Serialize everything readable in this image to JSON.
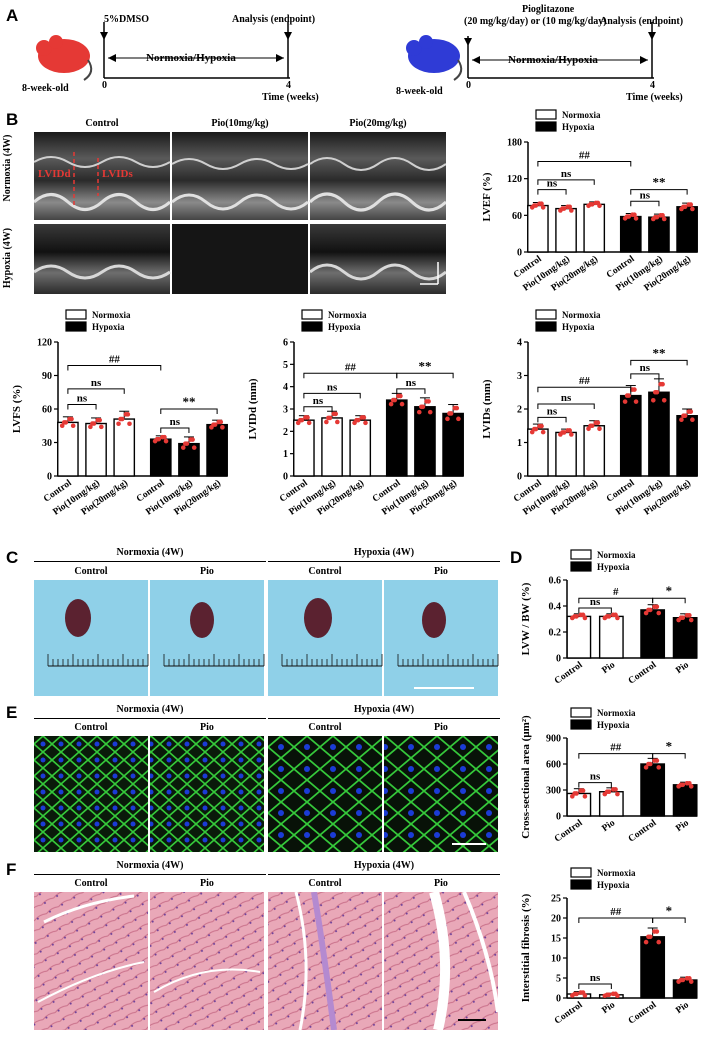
{
  "panels": {
    "A": "A",
    "B": "B",
    "C": "C",
    "D": "D",
    "E": "E",
    "F": "F"
  },
  "panel_a": {
    "left": {
      "drug": "5%DMSO",
      "analysis": "Analysis (endpoint)",
      "condition": "Normoxia/Hypoxia",
      "age": "8-week-old",
      "start": "0",
      "end": "4",
      "time": "Time (weeks)",
      "mouse_color": "#e53935"
    },
    "right": {
      "drug_line1": "Pioglitazone",
      "drug_line2": "(20 mg/kg/day) or (10 mg/kg/day)",
      "analysis": "Analysis (endpoint)",
      "condition": "Normoxia/Hypoxia",
      "age": "8-week-old",
      "start": "0",
      "end": "4",
      "time": "Time (weeks)",
      "mouse_color": "#2f3bd6"
    }
  },
  "echo": {
    "col_headers": [
      "Control",
      "Pio(10mg/kg)",
      "Pio(20mg/kg)"
    ],
    "row_headers": [
      "Normoxia (4W)",
      "Hypoxia (4W)"
    ],
    "lvidd": "LVIDd",
    "lvids": "LVIDs"
  },
  "heart": {
    "group_headers": [
      "Normoxia (4W)",
      "Hypoxia (4W)"
    ],
    "col_headers": [
      "Control",
      "Pio",
      "Control",
      "Pio"
    ]
  },
  "wga": {
    "group_headers": [
      "Normoxia (4W)",
      "Hypoxia (4W)"
    ],
    "col_headers": [
      "Control",
      "Pio",
      "Control",
      "Pio"
    ]
  },
  "he": {
    "group_headers": [
      "Normoxia (4W)",
      "Hypoxia (4W)"
    ],
    "col_headers": [
      "Control",
      "Pio",
      "Control",
      "Pio"
    ]
  },
  "colors": {
    "normoxia_fill": "#ffffff",
    "hypoxia_fill": "#000000",
    "dot": "#e53935",
    "wga_green": "#35c83a",
    "wga_blue": "#1b3bd6",
    "he_pink": "#e9a8b8",
    "echo_gray": "#3a3a3a",
    "pad_blue": "#8fd0e8"
  },
  "chart_data": [
    {
      "id": "lvef",
      "type": "bar",
      "ylabel": "LVEF (%)",
      "ylim": [
        0,
        180
      ],
      "yticks": [
        0,
        60,
        120,
        180
      ],
      "categories": [
        "Control",
        "Pio(10mg/kg)",
        "Pio(20mg/kg)",
        "Control",
        "Pio(10mg/kg)",
        "Pio(20mg/kg)"
      ],
      "groups": [
        "Normoxia",
        "Normoxia",
        "Normoxia",
        "Hypoxia",
        "Hypoxia",
        "Hypoxia"
      ],
      "values": [
        76,
        71,
        78,
        58,
        57,
        74
      ],
      "errors": [
        5,
        5,
        4,
        5,
        5,
        6
      ],
      "legend": [
        "Normoxia",
        "Hypoxia"
      ],
      "annotations": [
        {
          "pair": [
            0,
            1
          ],
          "text": "ns",
          "y": 102
        },
        {
          "pair": [
            0,
            2
          ],
          "text": "ns",
          "y": 118
        },
        {
          "pair": [
            0,
            3
          ],
          "text": "##",
          "y": 148
        },
        {
          "pair": [
            3,
            4
          ],
          "text": "ns",
          "y": 83
        },
        {
          "pair": [
            3,
            5
          ],
          "text": "**",
          "y": 102
        }
      ]
    },
    {
      "id": "lvfs",
      "type": "bar",
      "ylabel": "LVFS (%)",
      "ylim": [
        0,
        120
      ],
      "yticks": [
        0,
        30,
        60,
        90,
        120
      ],
      "categories": [
        "Control",
        "Pio(10mg/kg)",
        "Pio(20mg/kg)",
        "Control",
        "Pio(10mg/kg)",
        "Pio(20mg/kg)"
      ],
      "groups": [
        "Normoxia",
        "Normoxia",
        "Normoxia",
        "Hypoxia",
        "Hypoxia",
        "Hypoxia"
      ],
      "values": [
        48,
        47,
        51,
        33,
        29,
        46
      ],
      "errors": [
        5,
        5,
        7,
        3,
        6,
        4
      ],
      "legend": [
        "Normoxia",
        "Hypoxia"
      ],
      "annotations": [
        {
          "pair": [
            0,
            1
          ],
          "text": "ns",
          "y": 64
        },
        {
          "pair": [
            0,
            2
          ],
          "text": "ns",
          "y": 78
        },
        {
          "pair": [
            0,
            3
          ],
          "text": "##",
          "y": 99
        },
        {
          "pair": [
            3,
            4
          ],
          "text": "ns",
          "y": 43
        },
        {
          "pair": [
            3,
            5
          ],
          "text": "**",
          "y": 60
        }
      ]
    },
    {
      "id": "lvidd",
      "type": "bar",
      "ylabel": "LVIDd (mm)",
      "ylim": [
        0,
        6
      ],
      "yticks": [
        0,
        1,
        2,
        3,
        4,
        5,
        6
      ],
      "categories": [
        "Control",
        "Pio(10mg/kg)",
        "Pio(20mg/kg)",
        "Control",
        "Pio(10mg/kg)",
        "Pio(20mg/kg)"
      ],
      "groups": [
        "Normoxia",
        "Normoxia",
        "Normoxia",
        "Hypoxia",
        "Hypoxia",
        "Hypoxia"
      ],
      "values": [
        2.5,
        2.6,
        2.5,
        3.4,
        3.1,
        2.8
      ],
      "errors": [
        0.2,
        0.3,
        0.2,
        0.3,
        0.4,
        0.4
      ],
      "legend": [
        "Normoxia",
        "Hypoxia"
      ],
      "annotations": [
        {
          "pair": [
            0,
            1
          ],
          "text": "ns",
          "y": 3.1
        },
        {
          "pair": [
            0,
            2
          ],
          "text": "ns",
          "y": 3.7
        },
        {
          "pair": [
            0,
            3
          ],
          "text": "##",
          "y": 4.6
        },
        {
          "pair": [
            3,
            4
          ],
          "text": "ns",
          "y": 3.9
        },
        {
          "pair": [
            3,
            5
          ],
          "text": "**",
          "y": 4.6
        }
      ]
    },
    {
      "id": "lvids",
      "type": "bar",
      "ylabel": "LVIDs (mm)",
      "ylim": [
        0,
        4
      ],
      "yticks": [
        0,
        1,
        2,
        3,
        4
      ],
      "categories": [
        "Control",
        "Pio(10mg/kg)",
        "Pio(20mg/kg)",
        "Control",
        "Pio(10mg/kg)",
        "Pio(20mg/kg)"
      ],
      "groups": [
        "Normoxia",
        "Normoxia",
        "Normoxia",
        "Hypoxia",
        "Hypoxia",
        "Hypoxia"
      ],
      "values": [
        1.4,
        1.3,
        1.5,
        2.4,
        2.5,
        1.8
      ],
      "errors": [
        0.15,
        0.1,
        0.15,
        0.3,
        0.4,
        0.2
      ],
      "legend": [
        "Normoxia",
        "Hypoxia"
      ],
      "annotations": [
        {
          "pair": [
            0,
            1
          ],
          "text": "ns",
          "y": 1.75
        },
        {
          "pair": [
            0,
            2
          ],
          "text": "ns",
          "y": 2.15
        },
        {
          "pair": [
            0,
            3
          ],
          "text": "##",
          "y": 2.65
        },
        {
          "pair": [
            3,
            4
          ],
          "text": "ns",
          "y": 3.05
        },
        {
          "pair": [
            3,
            5
          ],
          "text": "**",
          "y": 3.45
        }
      ]
    },
    {
      "id": "lvwbw",
      "type": "bar",
      "ylabel": "LVW / BW (%)",
      "ylim": [
        0,
        0.6
      ],
      "yticks": [
        0.0,
        0.2,
        0.4,
        0.6
      ],
      "categories": [
        "Control",
        "Pio",
        "Control",
        "Pio"
      ],
      "groups": [
        "Normoxia",
        "Normoxia",
        "Hypoxia",
        "Hypoxia"
      ],
      "values": [
        0.32,
        0.32,
        0.37,
        0.31
      ],
      "errors": [
        0.02,
        0.02,
        0.04,
        0.03
      ],
      "legend": [
        "Normoxia",
        "Hypoxia"
      ],
      "annotations": [
        {
          "pair": [
            0,
            1
          ],
          "text": "ns",
          "y": 0.385
        },
        {
          "pair": [
            0,
            2
          ],
          "text": "#",
          "y": 0.46
        },
        {
          "pair": [
            2,
            3
          ],
          "text": "*",
          "y": 0.46
        }
      ]
    },
    {
      "id": "csa",
      "type": "bar",
      "ylabel": "Cross-sectional area (μm²)",
      "ylim": [
        0,
        900
      ],
      "yticks": [
        0,
        300,
        600,
        900
      ],
      "categories": [
        "Control",
        "Pio",
        "Control",
        "Pio"
      ],
      "groups": [
        "Normoxia",
        "Normoxia",
        "Hypoxia",
        "Hypoxia"
      ],
      "values": [
        260,
        280,
        600,
        360
      ],
      "errors": [
        55,
        45,
        65,
        30
      ],
      "legend": [
        "Normoxia",
        "Hypoxia"
      ],
      "annotations": [
        {
          "pair": [
            0,
            1
          ],
          "text": "ns",
          "y": 385
        },
        {
          "pair": [
            0,
            2
          ],
          "text": "##",
          "y": 720
        },
        {
          "pair": [
            2,
            3
          ],
          "text": "*",
          "y": 720
        }
      ]
    },
    {
      "id": "fibrosis",
      "type": "bar",
      "ylabel": "Interstitial fibrosis (%)",
      "ylim": [
        0,
        25
      ],
      "yticks": [
        0,
        5,
        10,
        15,
        20,
        25
      ],
      "categories": [
        "Control",
        "Pio",
        "Control",
        "Pio"
      ],
      "groups": [
        "Normoxia",
        "Normoxia",
        "Hypoxia",
        "Hypoxia"
      ],
      "values": [
        1.0,
        0.8,
        15.3,
        4.5
      ],
      "errors": [
        0.6,
        0.4,
        2.2,
        0.7
      ],
      "legend": [
        "Normoxia",
        "Hypoxia"
      ],
      "annotations": [
        {
          "pair": [
            0,
            1
          ],
          "text": "ns",
          "y": 3.5
        },
        {
          "pair": [
            0,
            2
          ],
          "text": "##",
          "y": 20
        },
        {
          "pair": [
            2,
            3
          ],
          "text": "*",
          "y": 20
        }
      ]
    }
  ]
}
